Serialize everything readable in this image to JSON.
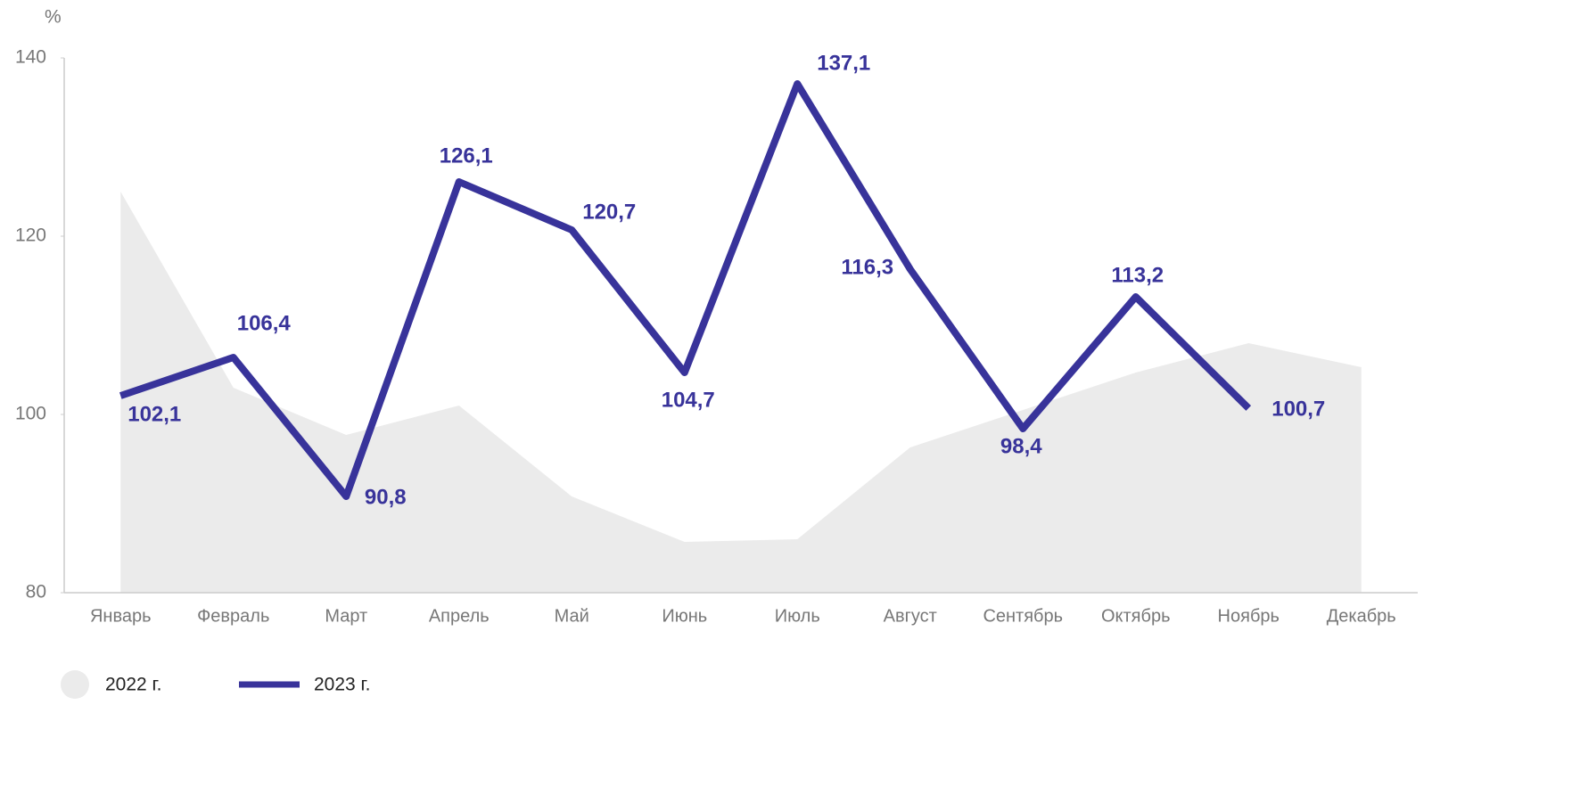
{
  "chart_data": {
    "type": "line",
    "ylabel": "%",
    "categories": [
      "Январь",
      "Февраль",
      "Март",
      "Апрель",
      "Май",
      "Июнь",
      "Июль",
      "Август",
      "Сентябрь",
      "Октябрь",
      "Ноябрь",
      "Декабрь"
    ],
    "series": [
      {
        "name": "2022 г.",
        "type": "area",
        "color": "#ebebeb",
        "values": [
          125.0,
          103.0,
          97.7,
          101.0,
          90.8,
          85.7,
          86.0,
          96.3,
          100.5,
          104.7,
          108.0,
          105.3
        ]
      },
      {
        "name": "2023 г.",
        "type": "line",
        "color": "#38339a",
        "values": [
          102.1,
          106.4,
          90.8,
          126.1,
          120.7,
          104.7,
          137.1,
          116.3,
          98.4,
          113.2,
          100.7,
          null
        ],
        "value_labels": [
          "102,1",
          "106,4",
          "90,8",
          "126,1",
          "120,7",
          "104,7",
          "137,1",
          "116,3",
          "98,4",
          "113,2",
          "100,7",
          null
        ]
      }
    ],
    "ylim": [
      80,
      140
    ],
    "yticks": [
      80,
      100,
      120,
      140
    ],
    "grid": false,
    "legend": "bottom-left"
  }
}
